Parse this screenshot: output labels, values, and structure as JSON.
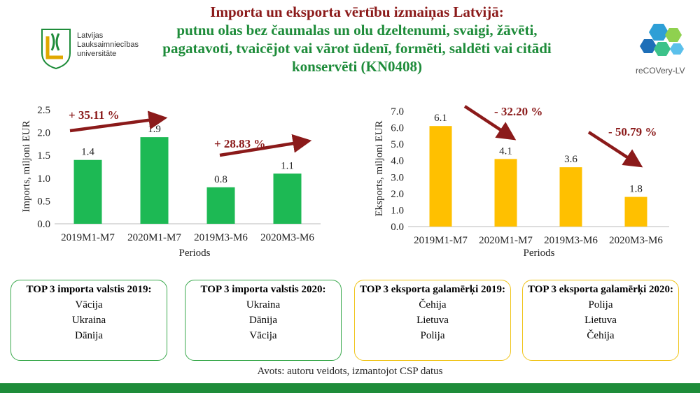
{
  "header": {
    "title_line1": "Importa un eksporta vērtību izmaiņas Latvijā:",
    "title_line2": "putnu olas bez čaumalas un olu dzeltenumi, svaigi, žāvēti,",
    "title_line3": "pagatavoti, tvaicējot vai vārot ūdenī, formēti, saldēti vai citādi",
    "title_line4": "konservēti (KN0408)",
    "university_line1": "Latvijas",
    "university_line2": "Lauksaimniecības",
    "university_line3": "universitāte",
    "project_name": "reCOVery-LV"
  },
  "colors": {
    "title_red": "#8b1a1a",
    "title_green": "#1e8c3a",
    "import_bar": "#1db954",
    "export_bar": "#ffc000",
    "arrow": "#8b1a1a"
  },
  "chart_data": [
    {
      "type": "bar",
      "categories": [
        "2019M1-M7",
        "2020M1-M7",
        "2019M3-M6",
        "2020M3-M6"
      ],
      "values": [
        1.4,
        1.9,
        0.8,
        1.1
      ],
      "value_labels": [
        "1.4",
        "1.9",
        "0.8",
        "1.1"
      ],
      "xlabel": "Periods",
      "ylabel": "Imports, miljoni EUR",
      "ylim": [
        0,
        2.5
      ],
      "yticks": [
        "0.0",
        "0.5",
        "1.0",
        "1.5",
        "2.0",
        "2.5"
      ],
      "annotations": [
        "+ 35.11 %",
        "+ 28.83 %"
      ],
      "grid": false
    },
    {
      "type": "bar",
      "categories": [
        "2019M1-M7",
        "2020M1-M7",
        "2019M3-M6",
        "2020M3-M6"
      ],
      "values": [
        6.1,
        4.1,
        3.6,
        1.8
      ],
      "value_labels": [
        "6.1",
        "4.1",
        "3.6",
        "1.8"
      ],
      "xlabel": "Periods",
      "ylabel": "Eksports, miljoni EUR",
      "ylim": [
        0,
        7.0
      ],
      "yticks": [
        "0.0",
        "1.0",
        "2.0",
        "3.0",
        "4.0",
        "5.0",
        "6.0",
        "7.0"
      ],
      "annotations": [
        "- 32.20 %",
        "- 50.79 %"
      ],
      "grid": false
    }
  ],
  "boxes": [
    {
      "title": "TOP 3 importa valstis 2019:",
      "items": [
        "Vācija",
        "Ukraina",
        "Dānija"
      ]
    },
    {
      "title": "TOP 3 importa valstis 2020:",
      "items": [
        "Ukraina",
        "Dānija",
        "Vācija"
      ]
    },
    {
      "title": "TOP 3 eksporta galamērķi 2019:",
      "items": [
        "Čehija",
        "Lietuva",
        "Polija"
      ]
    },
    {
      "title": "TOP 3 eksporta galamērķi 2020:",
      "items": [
        "Polija",
        "Lietuva",
        "Čehija"
      ]
    }
  ],
  "source": "Avots: autoru veidots, izmantojot CSP datus"
}
